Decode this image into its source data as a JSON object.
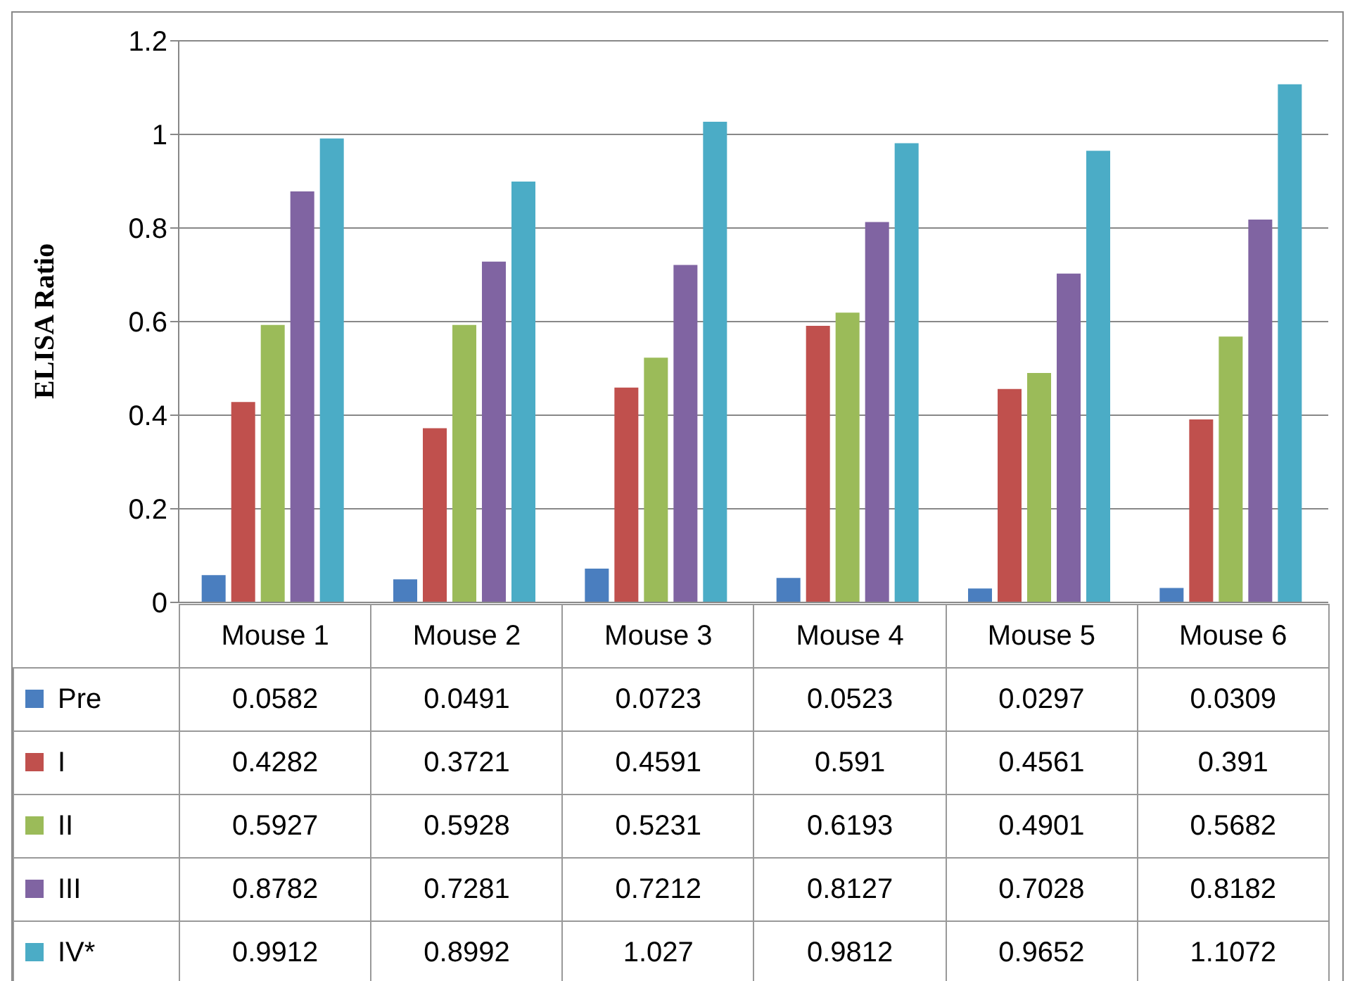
{
  "chart_data": {
    "type": "bar",
    "ylabel": "ELISA Ratio",
    "categories": [
      "Mouse 1",
      "Mouse 2",
      "Mouse 3",
      "Mouse 4",
      "Mouse 5",
      "Mouse 6"
    ],
    "series": [
      {
        "name": "Pre",
        "color": "#4a7ebf",
        "values": [
          0.0582,
          0.0491,
          0.0723,
          0.0523,
          0.0297,
          0.0309
        ]
      },
      {
        "name": "I",
        "color": "#c0504d",
        "values": [
          0.4282,
          0.3721,
          0.4591,
          0.591,
          0.4561,
          0.391
        ]
      },
      {
        "name": "II",
        "color": "#9bbb59",
        "values": [
          0.5927,
          0.5928,
          0.5231,
          0.6193,
          0.4901,
          0.5682
        ]
      },
      {
        "name": "III",
        "color": "#8064a2",
        "values": [
          0.8782,
          0.7281,
          0.7212,
          0.8127,
          0.7028,
          0.8182
        ]
      },
      {
        "name": "IV*",
        "color": "#4bacc6",
        "values": [
          0.9912,
          0.8992,
          1.027,
          0.9812,
          0.9652,
          1.1072
        ]
      }
    ],
    "ylim": [
      0,
      1.2
    ],
    "yticks": [
      0,
      0.2,
      0.4,
      0.6,
      0.8,
      1,
      1.2
    ],
    "grid": "y",
    "legend": "bottom",
    "data_labels": true
  }
}
